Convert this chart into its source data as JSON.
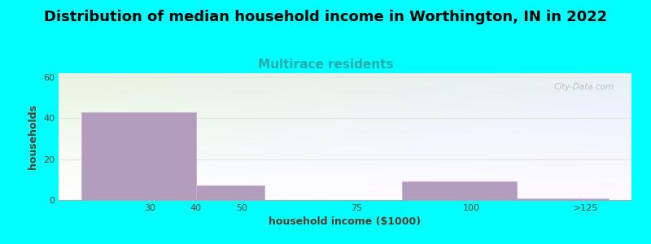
{
  "title": "Distribution of median household income in Worthington, IN in 2022",
  "subtitle": "Multirace residents",
  "xlabel": "household income ($1000)",
  "ylabel": "households",
  "background_color": "#00FFFF",
  "bar_color": "#b39dbd",
  "bar_edgecolor": "#c8a8d8",
  "bars": [
    {
      "x_left": 15,
      "x_right": 40,
      "height": 43
    },
    {
      "x_left": 40,
      "x_right": 55,
      "height": 7
    },
    {
      "x_left": 55,
      "x_right": 85,
      "height": 0
    },
    {
      "x_left": 85,
      "x_right": 110,
      "height": 9
    },
    {
      "x_left": 110,
      "x_right": 130,
      "height": 0.8
    }
  ],
  "xticks": [
    30,
    40,
    50,
    75,
    100,
    125
  ],
  "xticklabels": [
    "30",
    "40",
    "50",
    "75",
    "100",
    ">125"
  ],
  "yticks": [
    0,
    20,
    40,
    60
  ],
  "ylim": [
    0,
    62
  ],
  "xlim": [
    10,
    135
  ],
  "title_fontsize": 13,
  "subtitle_fontsize": 11,
  "axis_label_fontsize": 9,
  "tick_fontsize": 8,
  "title_color": "#000000",
  "subtitle_color": "#2aacac",
  "axis_label_color": "#5a3e2b",
  "tick_color": "#5a3e2b",
  "watermark_text": "City-Data.com",
  "watermark_color": "#b0b8c0",
  "grid_color": "#e0e8e0",
  "grid_alpha": 1.0
}
